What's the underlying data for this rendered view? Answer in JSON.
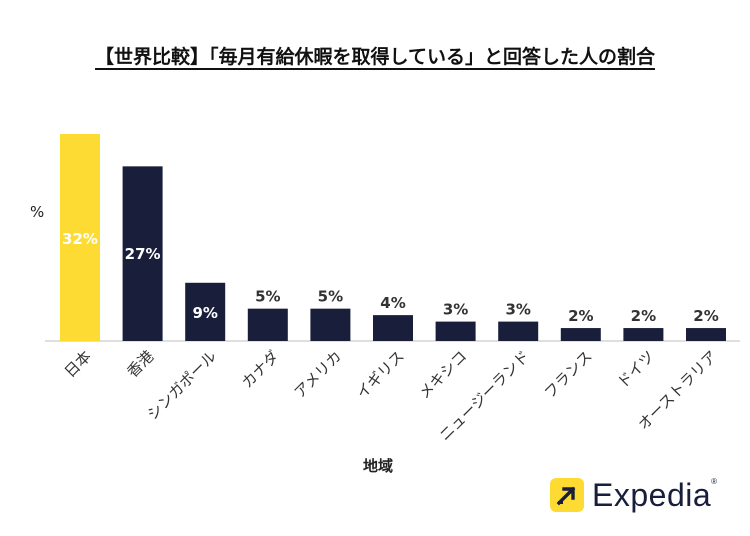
{
  "title": "【世界比較】「毎月有給休暇を取得している」と回答した人の割合",
  "logo": {
    "text": "Expedia",
    "mark": "®"
  },
  "chart_data": {
    "type": "bar",
    "ylabel": "%",
    "xlabel": "地域",
    "ylim": [
      0,
      32
    ],
    "categories": [
      "日本",
      "香港",
      "シンガポール",
      "カナダ",
      "アメリカ",
      "イギリス",
      "メキシコ",
      "ニュージーランド",
      "フランス",
      "ドイツ",
      "オーストラリア"
    ],
    "values": [
      32,
      27,
      9,
      5,
      5,
      4,
      3,
      3,
      2,
      2,
      2
    ],
    "data_labels": [
      "32%",
      "27%",
      "9%",
      "5%",
      "5%",
      "4%",
      "3%",
      "3%",
      "2%",
      "2%",
      "2%"
    ],
    "colors": [
      "#fddb32",
      "#191e3b",
      "#191e3b",
      "#191e3b",
      "#191e3b",
      "#191e3b",
      "#191e3b",
      "#191e3b",
      "#191e3b",
      "#191e3b",
      "#191e3b"
    ],
    "label_inside_color": "#ffffff",
    "label_outside_color": "#333333",
    "grid": false
  }
}
